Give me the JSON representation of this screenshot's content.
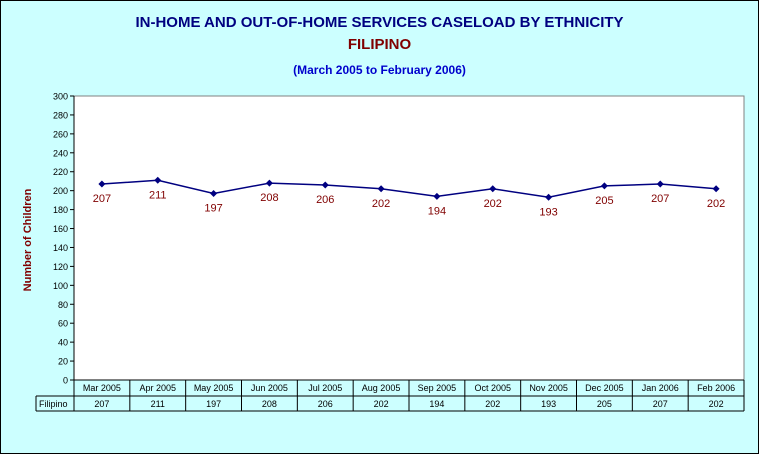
{
  "chart_data": {
    "type": "line",
    "title": "IN-HOME AND OUT-OF-HOME SERVICES CASELOAD BY ETHNICITY",
    "subtitle": "FILIPINO",
    "date_range": "(March 2005 to February 2006)",
    "ylabel": "Number of Children",
    "xlabel": "",
    "ylim": [
      0,
      300
    ],
    "ytick_step": 20,
    "grid": false,
    "categories": [
      "Mar 2005",
      "Apr 2005",
      "May 2005",
      "Jun 2005",
      "Jul 2005",
      "Aug 2005",
      "Sep 2005",
      "Oct 2005",
      "Nov 2005",
      "Dec 2005",
      "Jan 2006",
      "Feb 2006"
    ],
    "series": [
      {
        "name": "Filipino",
        "values": [
          207,
          211,
          197,
          208,
          206,
          202,
          194,
          202,
          193,
          205,
          207,
          202
        ]
      }
    ],
    "data_table": true,
    "colors": {
      "background": "#ccffff",
      "plot_area": "#ffffff",
      "line": "#000080",
      "data_label": "#800000",
      "title": "#000080",
      "subtitle": "#800000",
      "date_range": "#0000cc"
    }
  }
}
